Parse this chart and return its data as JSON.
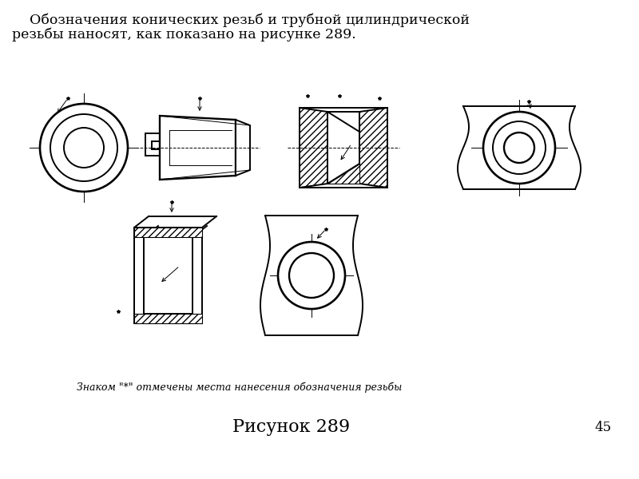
{
  "bg_color": "#ffffff",
  "title_text": "Рисунок 289",
  "page_number": "45",
  "header_line1": "    Обозначения конических резьб и трубной цилиндрической",
  "header_line2": "резьбы наносят, как показано на рисунке 289.",
  "footnote_text": "Знаком \"*\" отмечены места нанесения обозначения резьбы",
  "line_color": "#000000",
  "lw": 1.4,
  "thin_lw": 0.7
}
